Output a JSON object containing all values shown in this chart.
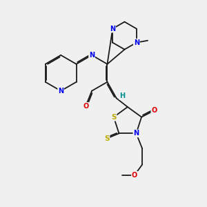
{
  "background_color": "#f0f0f0",
  "bond_color": "#1a1a1a",
  "bond_width": 1.3,
  "dbo": 0.055,
  "atom_colors": {
    "N": "#0000ee",
    "O": "#dd0000",
    "S": "#bbaa00",
    "H": "#009090"
  },
  "figsize": [
    3.0,
    3.0
  ],
  "dpi": 100
}
